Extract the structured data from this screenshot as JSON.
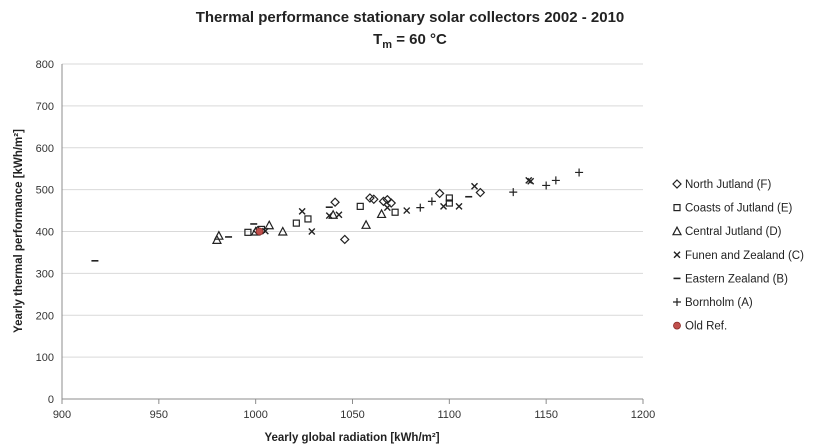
{
  "chart_data": {
    "type": "scatter",
    "title": "Thermal performance stationary solar collectors 2002 - 2010",
    "subtitle_main": "T",
    "subtitle_sub": "m",
    "subtitle_rest": " = 60 °C",
    "xlabel": "Yearly global radiation [kWh/m²]",
    "ylabel": "Yearly thermal performance [kWh/m²]",
    "xlim": [
      900,
      1200
    ],
    "ylim": [
      0,
      800
    ],
    "xticks": [
      "900",
      "950",
      "1000",
      "1050",
      "1100",
      "1150",
      "1200"
    ],
    "yticks": [
      "0",
      "100",
      "200",
      "300",
      "400",
      "500",
      "600",
      "700",
      "800"
    ],
    "grid": "horizontal",
    "legend_position": "right",
    "series": [
      {
        "name": "North Jutland (F)",
        "marker": "diamond",
        "color": "#222222",
        "points": [
          [
            1001,
            402
          ],
          [
            1041,
            470
          ],
          [
            1046,
            381
          ],
          [
            1059,
            480
          ],
          [
            1061,
            477
          ],
          [
            1066,
            472
          ],
          [
            1068,
            476
          ],
          [
            1070,
            468
          ],
          [
            1095,
            491
          ],
          [
            1116,
            493
          ]
        ]
      },
      {
        "name": "Coasts of Jutland (E)",
        "marker": "square",
        "color": "#222222",
        "points": [
          [
            996,
            398
          ],
          [
            1003,
            405
          ],
          [
            1021,
            420
          ],
          [
            1027,
            430
          ],
          [
            1054,
            460
          ],
          [
            1072,
            446
          ],
          [
            1100,
            468
          ],
          [
            1100,
            480
          ]
        ]
      },
      {
        "name": "Central Jutland (D)",
        "marker": "triangle",
        "color": "#222222",
        "points": [
          [
            980,
            380
          ],
          [
            981,
            390
          ],
          [
            1000,
            400
          ],
          [
            1007,
            415
          ],
          [
            1014,
            400
          ],
          [
            1040,
            440
          ],
          [
            1057,
            416
          ],
          [
            1065,
            442
          ]
        ]
      },
      {
        "name": "Funen and Zealand (C)",
        "marker": "x",
        "color": "#222222",
        "points": [
          [
            1005,
            401
          ],
          [
            1024,
            448
          ],
          [
            1029,
            400
          ],
          [
            1038,
            438
          ],
          [
            1043,
            440
          ],
          [
            1068,
            457
          ],
          [
            1078,
            450
          ],
          [
            1097,
            460
          ],
          [
            1105,
            460
          ],
          [
            1113,
            508
          ],
          [
            1141,
            522
          ],
          [
            1142,
            520
          ]
        ]
      },
      {
        "name": "Eastern Zealand (B)",
        "marker": "dash",
        "color": "#222222",
        "points": [
          [
            917,
            330
          ],
          [
            986,
            387
          ],
          [
            999,
            418
          ],
          [
            1038,
            458
          ],
          [
            1110,
            483
          ]
        ]
      },
      {
        "name": "Bornholm (A)",
        "marker": "plus",
        "color": "#222222",
        "points": [
          [
            1085,
            457
          ],
          [
            1091,
            472
          ],
          [
            1133,
            494
          ],
          [
            1150,
            510
          ],
          [
            1155,
            522
          ],
          [
            1167,
            541
          ]
        ]
      },
      {
        "name": "Old Ref.",
        "marker": "circle",
        "color": "#c0504d",
        "points": [
          [
            1002,
            400
          ]
        ]
      }
    ]
  }
}
